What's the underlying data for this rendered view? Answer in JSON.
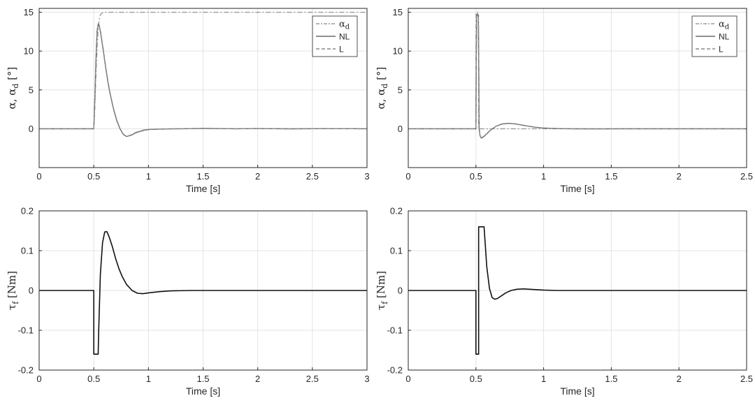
{
  "chart_data": [
    {
      "type": "line",
      "panel": "top-left",
      "xlabel": "Time [s]",
      "ylabel": "α, α_d [°]",
      "ylabel_parts": {
        "main": "α, α",
        "sub": "d",
        "unit": " [°]"
      },
      "xlim": [
        0,
        3
      ],
      "ylim": [
        -5,
        15.5
      ],
      "xticks": [
        "0",
        "0.5",
        "1",
        "1.5",
        "2",
        "2.5",
        "3"
      ],
      "yticks": [
        "0",
        "5",
        "10",
        "15"
      ],
      "grid": true,
      "legend": {
        "placement": "top-right",
        "entries": [
          {
            "label_main": "α",
            "label_sub": "d",
            "style": "dashdot"
          },
          {
            "label_main": "NL",
            "label_sub": "",
            "style": "solid"
          },
          {
            "label_main": "L",
            "label_sub": "",
            "style": "dashed"
          }
        ]
      },
      "series": [
        {
          "name": "α_d",
          "style": "dashdot",
          "color": "#9a9a9a",
          "x": [
            0,
            0.5,
            0.51,
            0.52,
            0.53,
            0.54,
            0.55,
            0.56,
            0.58,
            0.6,
            0.65,
            0.7,
            3.0
          ],
          "y": [
            0,
            0,
            3,
            7,
            10.5,
            12.8,
            14.1,
            14.7,
            14.95,
            15,
            15,
            15,
            15
          ]
        },
        {
          "name": "NL",
          "style": "solid",
          "color": "#6a6a6a",
          "x": [
            0,
            0.5,
            0.51,
            0.52,
            0.53,
            0.54,
            0.55,
            0.56,
            0.57,
            0.59,
            0.61,
            0.63,
            0.65,
            0.68,
            0.71,
            0.74,
            0.77,
            0.8,
            0.84,
            0.88,
            0.92,
            0.96,
            1.0,
            1.1,
            1.2,
            1.3,
            1.5,
            1.8,
            2.0,
            2.3,
            2.6,
            3.0
          ],
          "y": [
            0,
            0,
            4.2,
            9.0,
            12.6,
            13.5,
            13.3,
            12.6,
            11.7,
            9.8,
            7.8,
            6.0,
            4.5,
            2.6,
            1.1,
            0.0,
            -0.7,
            -1.0,
            -0.85,
            -0.55,
            -0.35,
            -0.2,
            -0.1,
            -0.05,
            -0.02,
            0.0,
            0.05,
            0.0,
            0.03,
            -0.01,
            0.02,
            0.0
          ]
        },
        {
          "name": "L",
          "style": "dashed",
          "color": "#8a8a8a",
          "x": [
            0,
            0.5,
            0.51,
            0.52,
            0.53,
            0.54,
            0.55,
            0.56,
            0.57,
            0.59,
            0.61,
            0.63,
            0.65,
            0.68,
            0.71,
            0.74,
            0.77,
            0.8,
            0.84,
            0.88,
            0.92,
            0.96,
            1.0,
            1.1,
            1.2,
            1.3,
            1.5,
            1.8,
            2.0,
            2.3,
            2.6,
            3.0
          ],
          "y": [
            0,
            0,
            4.1,
            8.8,
            12.4,
            13.4,
            13.2,
            12.5,
            11.6,
            9.7,
            7.7,
            5.9,
            4.4,
            2.5,
            1.0,
            -0.05,
            -0.75,
            -1.0,
            -0.8,
            -0.5,
            -0.3,
            -0.15,
            -0.08,
            -0.04,
            -0.02,
            0.0,
            0.03,
            0.0,
            0.02,
            -0.01,
            0.01,
            0.0
          ]
        }
      ]
    },
    {
      "type": "line",
      "panel": "top-right",
      "xlabel": "Time [s]",
      "ylabel": "α, α_d [°]",
      "ylabel_parts": {
        "main": "α, α",
        "sub": "d",
        "unit": " [°]"
      },
      "xlim": [
        0,
        2.5
      ],
      "ylim": [
        -5,
        15.5
      ],
      "xticks": [
        "0",
        "0.5",
        "1",
        "1.5",
        "2",
        "2.5"
      ],
      "yticks": [
        "0",
        "5",
        "10",
        "15"
      ],
      "grid": true,
      "legend": {
        "placement": "top-right",
        "entries": [
          {
            "label_main": "α",
            "label_sub": "d",
            "style": "dashdot"
          },
          {
            "label_main": "NL",
            "label_sub": "",
            "style": "solid"
          },
          {
            "label_main": "L",
            "label_sub": "",
            "style": "dashed"
          }
        ]
      },
      "series": [
        {
          "name": "α_d",
          "style": "dashdot",
          "color": "#9a9a9a",
          "x": [
            0,
            0.5,
            0.501,
            0.51,
            0.519,
            0.52,
            2.5
          ],
          "y": [
            0,
            0,
            15,
            15,
            15,
            0,
            0
          ]
        },
        {
          "name": "NL",
          "style": "solid",
          "color": "#6a6a6a",
          "x": [
            0,
            0.5,
            0.502,
            0.505,
            0.512,
            0.518,
            0.521,
            0.524,
            0.53,
            0.54,
            0.56,
            0.6,
            0.65,
            0.7,
            0.75,
            0.8,
            0.85,
            0.9,
            0.95,
            1.0,
            1.1,
            1.2,
            1.4,
            1.6,
            2.0,
            2.5
          ],
          "y": [
            0,
            0,
            8,
            14.6,
            14.8,
            14.4,
            8,
            0,
            -0.9,
            -1.2,
            -1.0,
            -0.3,
            0.35,
            0.65,
            0.7,
            0.6,
            0.45,
            0.3,
            0.18,
            0.1,
            0.03,
            0.0,
            -0.02,
            0.0,
            0.0,
            0.0
          ]
        },
        {
          "name": "L",
          "style": "dashed",
          "color": "#8a8a8a",
          "x": [
            0,
            0.5,
            0.502,
            0.505,
            0.512,
            0.518,
            0.521,
            0.524,
            0.53,
            0.54,
            0.56,
            0.6,
            0.65,
            0.7,
            0.75,
            0.8,
            0.85,
            0.9,
            0.95,
            1.0,
            1.1,
            1.2,
            1.4,
            1.6,
            2.0,
            2.5
          ],
          "y": [
            0,
            0,
            8,
            14.5,
            14.7,
            14.3,
            8,
            0,
            -0.85,
            -1.15,
            -0.95,
            -0.28,
            0.33,
            0.62,
            0.68,
            0.58,
            0.43,
            0.28,
            0.17,
            0.09,
            0.03,
            0.0,
            -0.02,
            0.0,
            0.0,
            0.0
          ]
        }
      ]
    },
    {
      "type": "line",
      "panel": "bottom-left",
      "xlabel": "Time [s]",
      "ylabel": "τ_f [Nm]",
      "ylabel_parts": {
        "main": "τ",
        "sub": "f",
        "unit": " [Nm]"
      },
      "xlim": [
        0,
        3
      ],
      "ylim": [
        -0.2,
        0.2
      ],
      "xticks": [
        "0",
        "0.5",
        "1",
        "1.5",
        "2",
        "2.5",
        "3"
      ],
      "yticks": [
        "-0.2",
        "-0.1",
        "0",
        "0.1",
        "0.2"
      ],
      "grid": true,
      "series": [
        {
          "name": "",
          "style": "solid",
          "color": "#111111",
          "x": [
            0,
            0.5,
            0.5,
            0.54,
            0.545,
            0.56,
            0.58,
            0.6,
            0.62,
            0.64,
            0.67,
            0.7,
            0.73,
            0.76,
            0.8,
            0.85,
            0.9,
            0.95,
            1.0,
            1.1,
            1.2,
            1.4,
            1.6,
            2.0,
            3.0
          ],
          "y": [
            0,
            0,
            -0.16,
            -0.16,
            -0.1,
            0.04,
            0.12,
            0.147,
            0.148,
            0.135,
            0.11,
            0.08,
            0.055,
            0.035,
            0.015,
            0.0,
            -0.007,
            -0.008,
            -0.006,
            -0.003,
            -0.001,
            0.0,
            0.0,
            0.0,
            0.0
          ]
        }
      ]
    },
    {
      "type": "line",
      "panel": "bottom-right",
      "xlabel": "Time [s]",
      "ylabel": "τ_f [Nm]",
      "ylabel_parts": {
        "main": "τ",
        "sub": "f",
        "unit": " [Nm]"
      },
      "xlim": [
        0,
        2.5
      ],
      "ylim": [
        -0.2,
        0.2
      ],
      "xticks": [
        "0",
        "0.5",
        "1",
        "1.5",
        "2",
        "2.5"
      ],
      "yticks": [
        "-0.2",
        "-0.1",
        "0",
        "0.1",
        "0.2"
      ],
      "grid": true,
      "series": [
        {
          "name": "",
          "style": "solid",
          "color": "#111111",
          "x": [
            0,
            0.5,
            0.5,
            0.52,
            0.52,
            0.56,
            0.58,
            0.6,
            0.62,
            0.64,
            0.66,
            0.69,
            0.72,
            0.76,
            0.8,
            0.85,
            0.9,
            0.95,
            1.0,
            1.1,
            1.3,
            1.6,
            2.0,
            2.5
          ],
          "y": [
            0,
            0,
            -0.16,
            -0.16,
            0.16,
            0.16,
            0.06,
            0.005,
            -0.018,
            -0.022,
            -0.02,
            -0.013,
            -0.006,
            0.0,
            0.003,
            0.004,
            0.003,
            0.002,
            0.001,
            0.0,
            0.0,
            0.0,
            0.0,
            0.0
          ]
        }
      ]
    }
  ]
}
